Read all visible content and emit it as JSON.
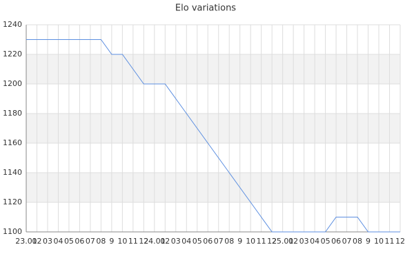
{
  "chart_data": {
    "type": "line",
    "title": "Elo variations",
    "categories": [
      "23.01",
      "02",
      "03",
      "04",
      "05",
      "06",
      "07",
      "08",
      "9",
      "10",
      "11",
      "12",
      "24.01",
      "02",
      "03",
      "04",
      "05",
      "06",
      "07",
      "08",
      "9",
      "10",
      "11",
      "12",
      "25.01",
      "02",
      "03",
      "04",
      "05",
      "06",
      "07",
      "08",
      "9",
      "10",
      "11",
      "12"
    ],
    "values": [
      1230,
      1230,
      1230,
      1230,
      1230,
      1230,
      1230,
      1230,
      1220,
      1220,
      1210,
      1200,
      1200,
      1200,
      1190,
      1180,
      1170,
      1160,
      1150,
      1140,
      1130,
      1120,
      1110,
      1100,
      1100,
      1100,
      1100,
      1100,
      1100,
      1110,
      1110,
      1110,
      1100,
      1100,
      1100,
      1100
    ],
    "color": "#5b8ee0",
    "ylim": [
      1100,
      1240
    ],
    "yticks": [
      1100,
      1120,
      1140,
      1160,
      1180,
      1200,
      1220,
      1240
    ],
    "grid": true,
    "band_color": "#f2f2f2"
  }
}
